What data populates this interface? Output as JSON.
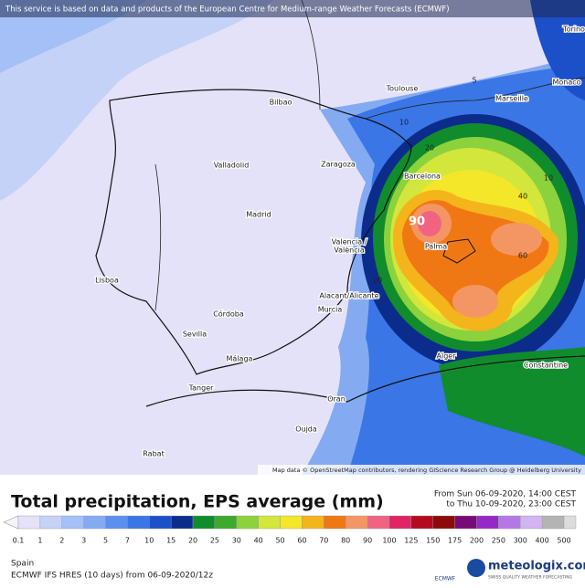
{
  "banner": "This service is based on data and products of the European Centre for Medium-range Weather Forecasts (ECMWF)",
  "cities": [
    "Torino",
    "Monaco",
    "Toulouse",
    "Marseille",
    "Bilbao",
    "Valladolid",
    "Zaragoza",
    "Barcelona",
    "Madrid",
    "Valencia /",
    "València",
    "Palma",
    "Lisboa",
    "Alacant/Alicante",
    "Murcia",
    "Córdoba",
    "Sevilla",
    "Málaga",
    "Alger",
    "Constantine",
    "Tanger",
    "Oran",
    "Oujda",
    "Rabat"
  ],
  "contour_labels": [
    5,
    10,
    20,
    40,
    60,
    90,
    20,
    10
  ],
  "attribution": "Map data © OpenStreetMap contributors, rendering GIScience Research Group @ Heidelberg University",
  "title": "Total precipitation, EPS average (mm)",
  "period": {
    "from": "From Sun 06-09-2020, 14:00 CEST",
    "to": "to Thu 10-09-2020, 23:00 CEST"
  },
  "scale": [
    {
      "value": 0.1,
      "color": "#e4e2f8"
    },
    {
      "value": 1,
      "color": "#c4d2f8"
    },
    {
      "value": 2,
      "color": "#a4c0f6"
    },
    {
      "value": 3,
      "color": "#84aaf2"
    },
    {
      "value": 5,
      "color": "#5c90ee"
    },
    {
      "value": 7,
      "color": "#3a76e6"
    },
    {
      "value": 10,
      "color": "#1c50c8"
    },
    {
      "value": 15,
      "color": "#0c2c8c"
    },
    {
      "value": 20,
      "color": "#108c2c"
    },
    {
      "value": 25,
      "color": "#3caa2c"
    },
    {
      "value": 30,
      "color": "#8cd23c"
    },
    {
      "value": 40,
      "color": "#d2e63c"
    },
    {
      "value": 50,
      "color": "#f4e628"
    },
    {
      "value": 60,
      "color": "#f4b41c"
    },
    {
      "value": 70,
      "color": "#f07814"
    },
    {
      "value": 80,
      "color": "#f49664"
    },
    {
      "value": 90,
      "color": "#f06482"
    },
    {
      "value": 100,
      "color": "#e02464"
    },
    {
      "value": 125,
      "color": "#b40a1e"
    },
    {
      "value": 150,
      "color": "#8c0a0a"
    },
    {
      "value": 175,
      "color": "#780a78"
    },
    {
      "value": 200,
      "color": "#9628c8"
    },
    {
      "value": 250,
      "color": "#b478e6"
    },
    {
      "value": 300,
      "color": "#d2b4f0"
    },
    {
      "value": 400,
      "color": "#b4b4b4"
    },
    {
      "value": 500,
      "color": "#dcdcdc"
    }
  ],
  "region": "Spain",
  "model": "ECMWF IFS HRES (10 days) from 06-09-2020/12z",
  "brand": {
    "name": "meteologix.com",
    "tagline": "SWISS QUALITY WEATHER FORECASTING",
    "ecmwf": "ECMWF"
  }
}
